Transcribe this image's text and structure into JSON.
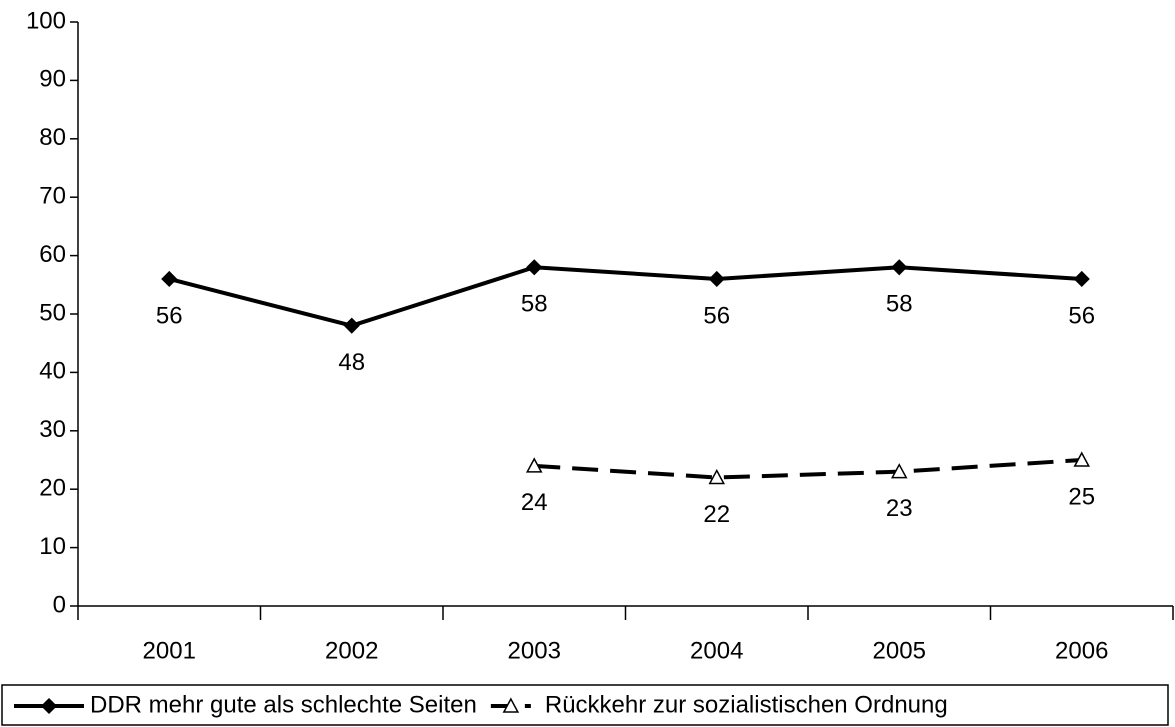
{
  "chart_data": {
    "type": "line",
    "categories": [
      "2001",
      "2002",
      "2003",
      "2004",
      "2005",
      "2006"
    ],
    "series": [
      {
        "name": "DDR mehr gute als schlechte Seiten",
        "color": "#000000",
        "marker": "diamond",
        "dash": false,
        "values": [
          56,
          48,
          58,
          56,
          58,
          56
        ]
      },
      {
        "name": "Rückkehr zur sozialistischen Ordnung",
        "color": "#000000",
        "marker": "triangle",
        "dash": true,
        "values": [
          null,
          null,
          24,
          22,
          23,
          25
        ]
      }
    ],
    "ylim": [
      0,
      100
    ],
    "yticks": [
      0,
      10,
      20,
      30,
      40,
      50,
      60,
      70,
      80,
      90,
      100
    ],
    "grid": false,
    "legend": "bottom"
  }
}
